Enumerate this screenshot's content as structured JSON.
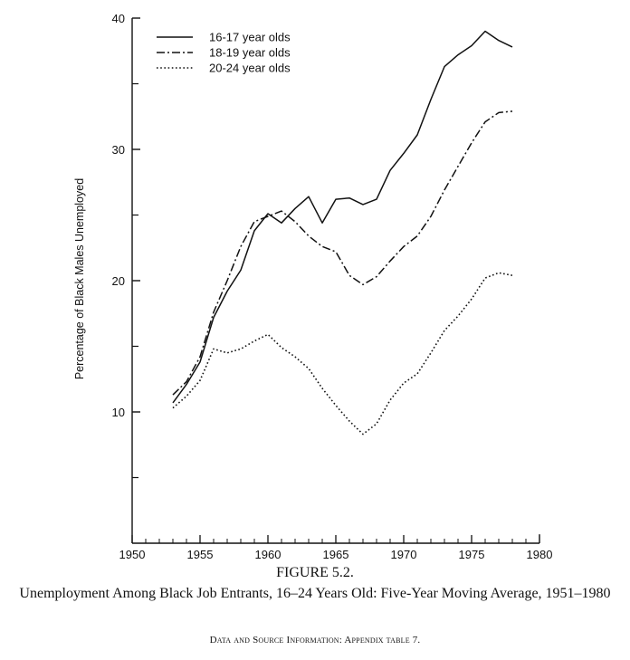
{
  "figure": {
    "number": "FIGURE 5.2.",
    "title": "Unemployment Among Black Job Entrants, 16–24 Years Old: Five-Year Moving Average, 1951–1980",
    "source": "Data and Source Information: Appendix table 7."
  },
  "chart_data": {
    "type": "line",
    "title": "Unemployment Among Black Job Entrants, 16–24 Years Old: Five-Year Moving Average, 1951–1980",
    "xlabel": "",
    "ylabel": "Percentage of Black Males Unemployed",
    "xlim": [
      1950,
      1980
    ],
    "ylim": [
      0,
      40
    ],
    "x_ticks": [
      1950,
      1955,
      1960,
      1965,
      1970,
      1975,
      1980
    ],
    "y_ticks": [
      10,
      20,
      30,
      40
    ],
    "legend_position": "top-left",
    "grid": false,
    "series": [
      {
        "name": "16-17 year olds",
        "style": "solid",
        "x": [
          1953,
          1954,
          1955,
          1956,
          1957,
          1958,
          1959,
          1960,
          1961,
          1962,
          1963,
          1964,
          1965,
          1966,
          1967,
          1968,
          1969,
          1970,
          1971,
          1972,
          1973,
          1974,
          1975,
          1976,
          1977,
          1978
        ],
        "values": [
          10.7,
          12.1,
          13.8,
          17.2,
          19.2,
          20.8,
          23.8,
          25.1,
          24.4,
          25.5,
          26.4,
          24.4,
          26.2,
          26.3,
          25.8,
          26.2,
          28.4,
          29.7,
          31.1,
          33.8,
          36.3,
          37.2,
          37.9,
          39.0,
          38.3,
          37.8
        ]
      },
      {
        "name": "18-19 year olds",
        "style": "dashdot",
        "x": [
          1953,
          1954,
          1955,
          1956,
          1957,
          1958,
          1959,
          1960,
          1961,
          1962,
          1963,
          1964,
          1965,
          1966,
          1967,
          1968,
          1969,
          1970,
          1971,
          1972,
          1973,
          1974,
          1975,
          1976,
          1977,
          1978
        ],
        "values": [
          11.3,
          12.3,
          14.2,
          17.6,
          20.0,
          22.6,
          24.5,
          24.9,
          25.3,
          24.5,
          23.4,
          22.6,
          22.2,
          20.4,
          19.7,
          20.3,
          21.5,
          22.6,
          23.4,
          24.9,
          26.9,
          28.7,
          30.5,
          32.1,
          32.8,
          32.9
        ]
      },
      {
        "name": "20-24 year olds",
        "style": "dotted",
        "x": [
          1953,
          1954,
          1955,
          1956,
          1957,
          1958,
          1959,
          1960,
          1961,
          1962,
          1963,
          1964,
          1965,
          1966,
          1967,
          1968,
          1969,
          1970,
          1971,
          1972,
          1973,
          1974,
          1975,
          1976,
          1977,
          1978
        ],
        "values": [
          10.3,
          11.2,
          12.4,
          14.8,
          14.5,
          14.8,
          15.4,
          15.9,
          14.9,
          14.2,
          13.3,
          11.8,
          10.5,
          9.3,
          8.3,
          9.1,
          10.9,
          12.2,
          12.9,
          14.5,
          16.2,
          17.3,
          18.6,
          20.2,
          20.6,
          20.4
        ]
      }
    ]
  }
}
